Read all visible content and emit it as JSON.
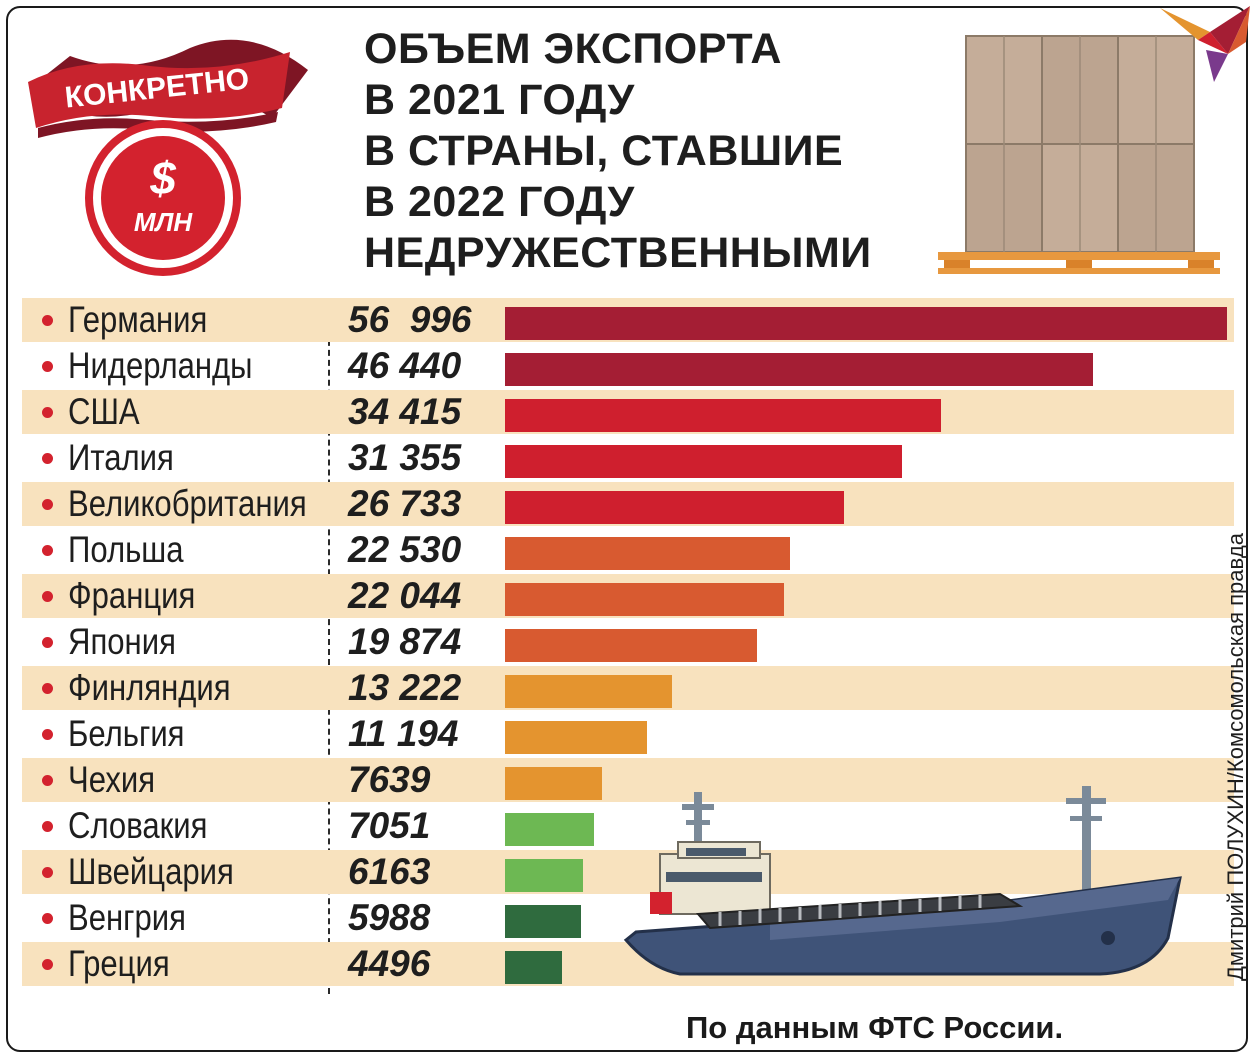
{
  "header": {
    "badge_label": "КОНКРЕТНО",
    "currency_symbol": "$",
    "unit_label": "МЛН",
    "title_lines": [
      "ОБЪЕМ ЭКСПОРТА",
      "В 2021 ГОДУ",
      "В СТРАНЫ, СТАВШИЕ",
      "В 2022 ГОДУ",
      "НЕДРУЖЕСТВЕННЫМИ"
    ]
  },
  "chart_data": {
    "type": "bar",
    "orientation": "horizontal",
    "categories": [
      "Германия",
      "Нидерланды",
      "США",
      "Италия",
      "Великобритания",
      "Польша",
      "Франция",
      "Япония",
      "Финляндия",
      "Бельгия",
      "Чехия",
      "Словакия",
      "Швейцария",
      "Венгрия",
      "Греция"
    ],
    "values": [
      56996,
      46440,
      34415,
      31355,
      26733,
      22530,
      22044,
      19874,
      13222,
      11194,
      7639,
      7051,
      6163,
      5988,
      4496
    ],
    "value_labels": [
      "56  996",
      "46 440",
      "34 415",
      "31 355",
      "26 733",
      "22 530",
      "22 044",
      "19 874",
      "13 222",
      "11 194",
      "7639",
      "7051",
      "6163",
      "5988",
      "4496"
    ],
    "bar_colors": [
      "#a41e34",
      "#a41e34",
      "#cf1f2e",
      "#cf1f2e",
      "#cf1f2e",
      "#d85a30",
      "#d85a30",
      "#d85a30",
      "#e4942f",
      "#e4942f",
      "#e4942f",
      "#6db853",
      "#6db853",
      "#2f6b3e",
      "#2f6b3e"
    ],
    "xlim": [
      0,
      56996
    ],
    "grid": false,
    "legend": "none"
  },
  "footer": {
    "source": "По данным ФТС России.",
    "credit": "Дмитрий ПОЛУХИН/Комсомольская правда"
  },
  "colors": {
    "accent_red": "#d3222e",
    "row_band": "#f8e2be",
    "text": "#1e1e1e"
  },
  "icons": [
    "ribbon-badge",
    "dollar-circle-icon",
    "cardboard-pallet-illustration",
    "bird-logo-icon",
    "cargo-ship-illustration"
  ]
}
